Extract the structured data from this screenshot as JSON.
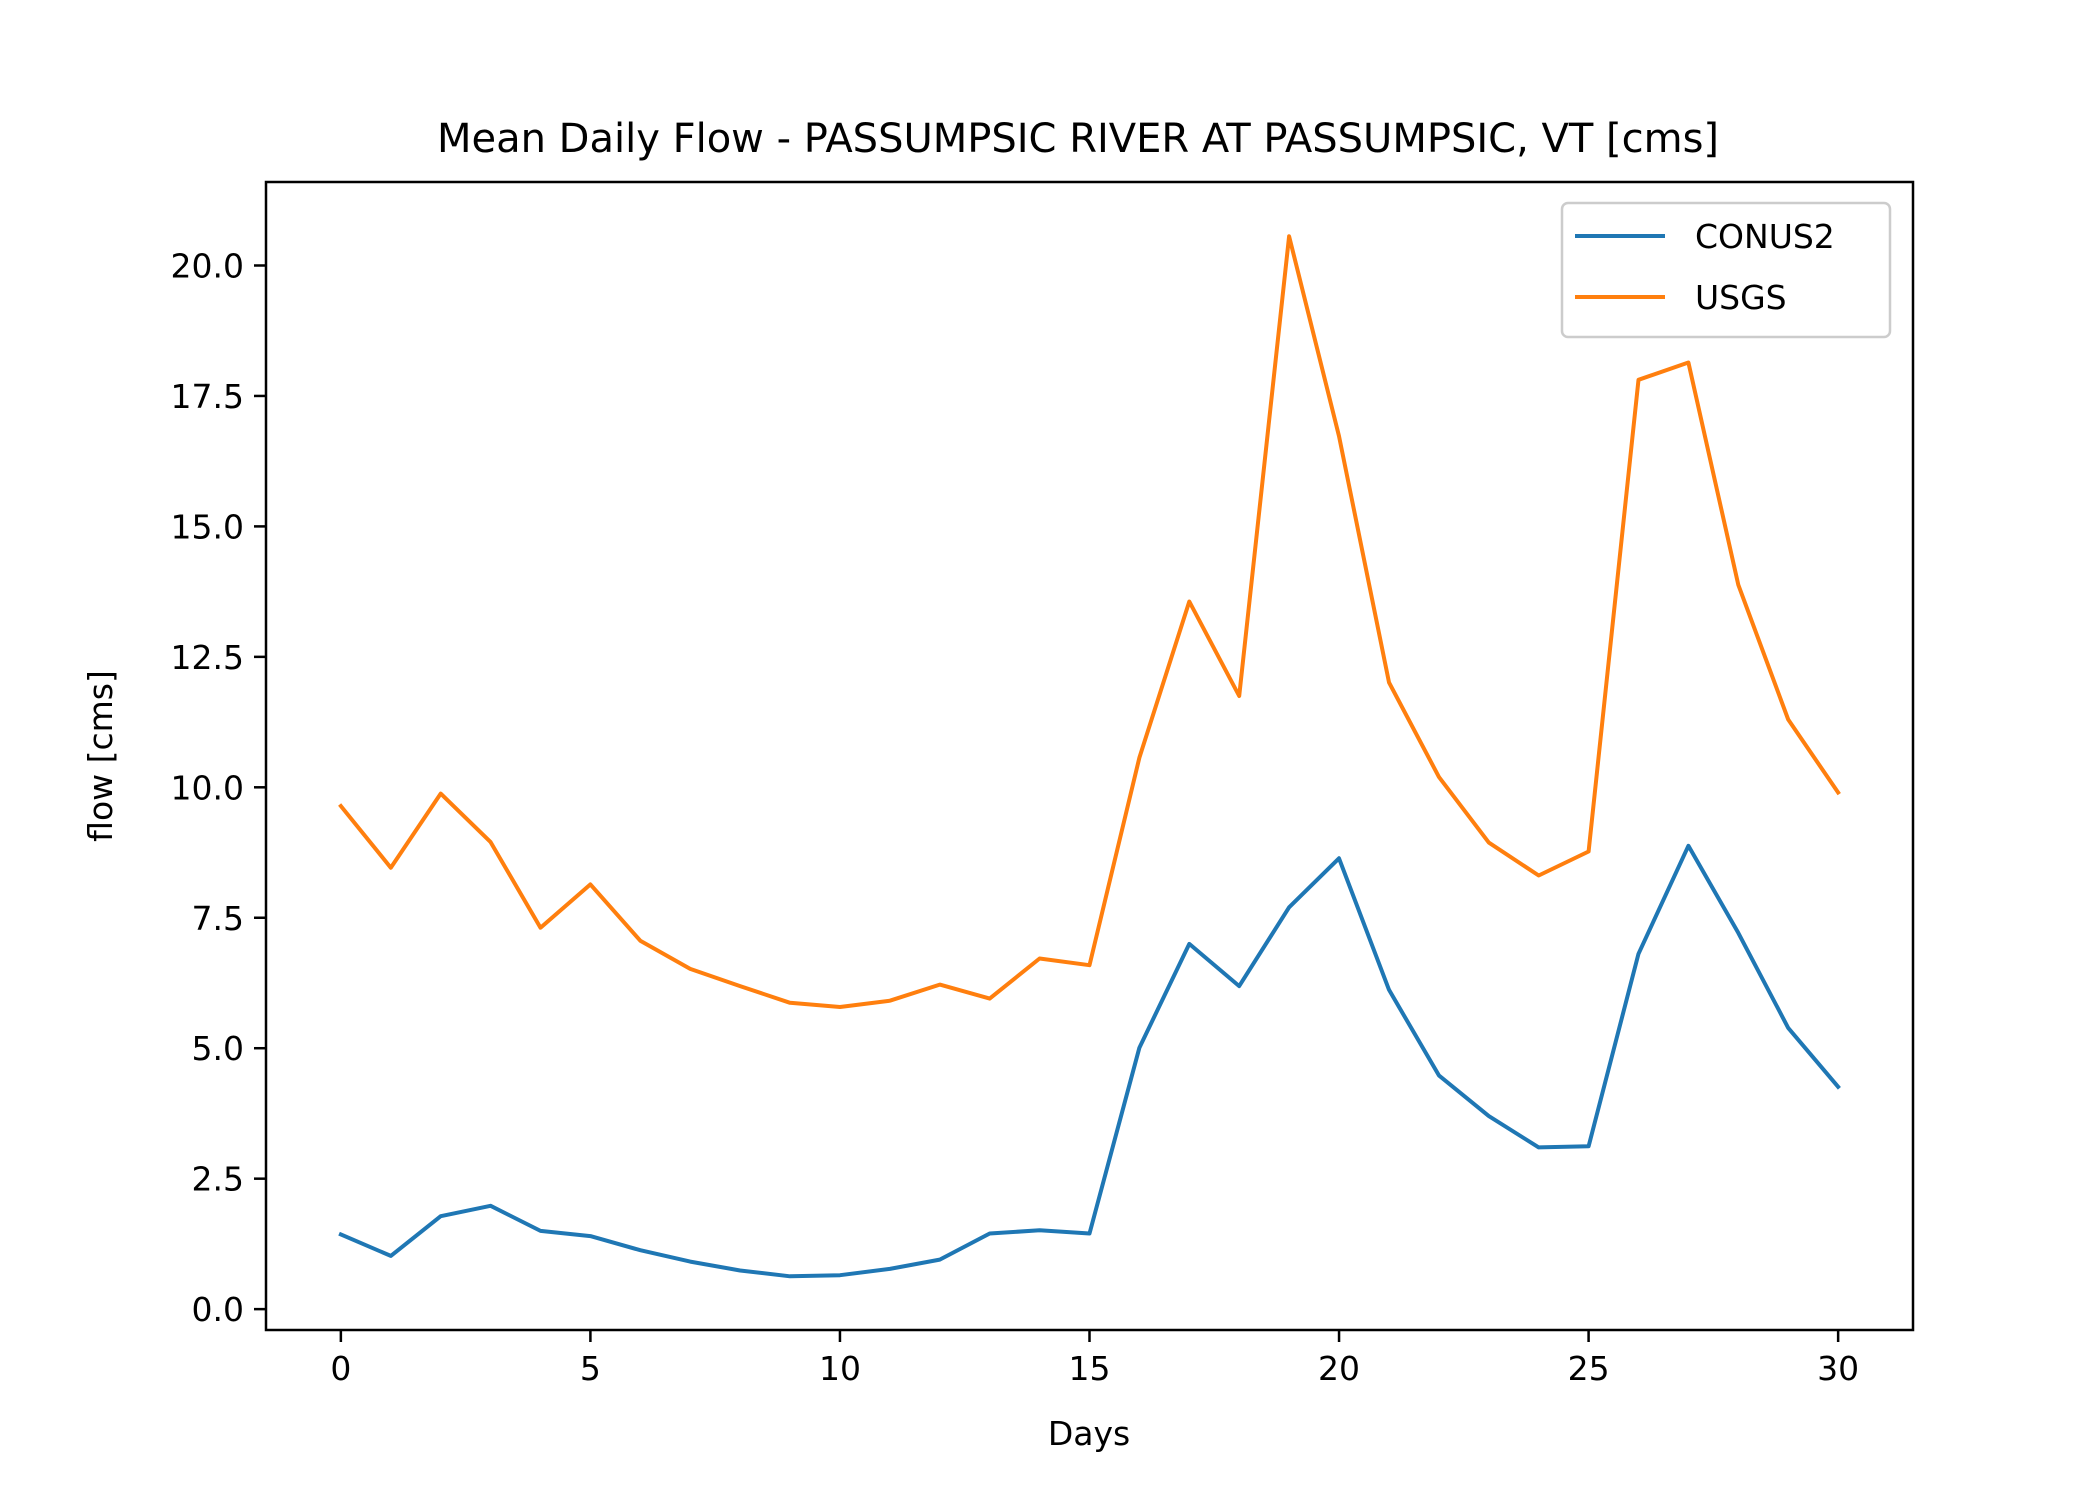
{
  "chart_data": {
    "type": "line",
    "title": "Mean Daily Flow - PASSUMPSIC RIVER AT PASSUMPSIC, VT [cms]",
    "xlabel": "Days",
    "ylabel": "flow [cms]",
    "xlim": [
      -1.5,
      31.5
    ],
    "ylim": [
      -0.4,
      21.6
    ],
    "xticks": [
      0,
      5,
      10,
      15,
      20,
      25,
      30
    ],
    "xtick_labels": [
      "0",
      "5",
      "10",
      "15",
      "20",
      "25",
      "30"
    ],
    "yticks": [
      0,
      2.5,
      5,
      7.5,
      10,
      12.5,
      15,
      17.5,
      20
    ],
    "ytick_labels": [
      "0.0",
      "2.5",
      "5.0",
      "7.5",
      "10.0",
      "12.5",
      "15.0",
      "17.5",
      "20.0"
    ],
    "grid": false,
    "legend_position": "top-right",
    "x": [
      0,
      1,
      2,
      3,
      4,
      5,
      6,
      7,
      8,
      9,
      10,
      11,
      12,
      13,
      14,
      15,
      16,
      17,
      18,
      19,
      20,
      21,
      22,
      23,
      24,
      25,
      26,
      27,
      28,
      29,
      30
    ],
    "series": [
      {
        "name": "CONUS2",
        "color": "#1f77b4",
        "values": [
          1.43,
          1.02,
          1.78,
          1.98,
          1.5,
          1.4,
          1.13,
          0.91,
          0.74,
          0.63,
          0.65,
          0.77,
          0.95,
          1.45,
          1.51,
          1.45,
          5.01,
          7.0,
          6.19,
          7.7,
          8.64,
          6.12,
          4.48,
          3.7,
          3.1,
          3.12,
          6.81,
          8.88,
          7.21,
          5.39,
          4.26
        ]
      },
      {
        "name": "USGS",
        "color": "#ff7f0e",
        "values": [
          9.64,
          8.46,
          9.88,
          8.95,
          7.31,
          8.14,
          7.06,
          6.52,
          6.19,
          5.87,
          5.79,
          5.91,
          6.22,
          5.95,
          6.72,
          6.59,
          10.57,
          13.56,
          11.75,
          20.56,
          16.73,
          12.01,
          10.2,
          8.94,
          8.31,
          8.77,
          17.81,
          18.14,
          13.88,
          11.3,
          9.9
        ]
      }
    ]
  }
}
